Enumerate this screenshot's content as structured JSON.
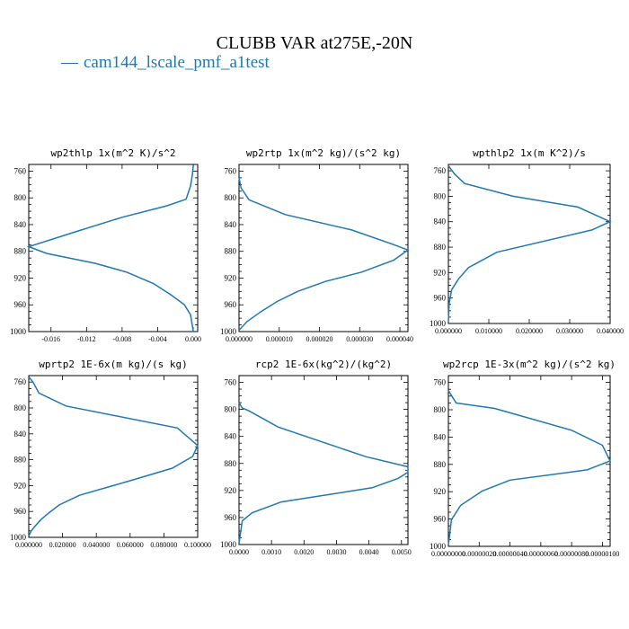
{
  "title": "CLUBB VAR at275E,-20N",
  "legend": {
    "dash": "—",
    "label": "cam144_lscale_pmf_a1test",
    "color": "#1f77b4"
  },
  "chart_data": [
    {
      "type": "line",
      "title": "wp2thlp  1x(m^2 K)/s^2",
      "xlim": [
        -0.0185,
        0.0005
      ],
      "ylim": [
        1000,
        750
      ],
      "yticks": [
        760,
        800,
        840,
        880,
        920,
        960,
        1000
      ],
      "xticks": [
        -0.016,
        -0.012,
        -0.008,
        -0.004,
        0.0
      ],
      "xticklabels": [
        "-0.016",
        "-0.012",
        "-0.008",
        "-0.004",
        "0.000"
      ],
      "series": [
        {
          "x": [
            0.0,
            -0.0001,
            -0.0003,
            -0.0008,
            -0.003,
            -0.008,
            -0.0133,
            -0.0185,
            -0.0165,
            -0.011,
            -0.0075,
            -0.0045,
            -0.0025,
            -0.001,
            -0.0003,
            0.0
          ],
          "y": [
            752,
            765,
            782,
            802,
            812,
            829,
            851,
            873,
            883,
            898,
            911,
            928,
            945,
            960,
            975,
            1000
          ]
        }
      ]
    },
    {
      "type": "line",
      "title": "wp2rtp  1x(m^2 kg)/(s^2 kg)",
      "xlim": [
        0.0,
        4.2e-05
      ],
      "ylim": [
        1000,
        750
      ],
      "yticks": [
        760,
        800,
        840,
        880,
        920,
        960,
        1000
      ],
      "xticks": [
        0.0,
        1e-05,
        2e-05,
        3e-05,
        4e-05
      ],
      "xticklabels": [
        "0.000000",
        "0.000010",
        "0.000020",
        "0.000030",
        "0.000040"
      ],
      "series": [
        {
          "x": [
            0.0,
            5e-07,
            2.5e-06,
            1.15e-05,
            2.8e-05,
            3.85e-05,
            4.2e-05,
            3.85e-05,
            3.05e-05,
            2.15e-05,
            1.45e-05,
            9.5e-06,
            5.5e-06,
            2e-06,
            0.0
          ],
          "y": [
            770,
            785,
            803,
            825,
            848,
            870,
            878,
            893,
            911,
            925,
            940,
            955,
            970,
            985,
            998
          ]
        }
      ]
    },
    {
      "type": "line",
      "title": "wpthlp2  1x(m K^2)/s",
      "xlim": [
        0.0,
        0.04
      ],
      "ylim": [
        1000,
        750
      ],
      "yticks": [
        760,
        800,
        840,
        880,
        920,
        960,
        1000
      ],
      "xticks": [
        0.0,
        0.01,
        0.02,
        0.03,
        0.04
      ],
      "xticklabels": [
        "0.000000",
        "0.010000",
        "0.020000",
        "0.030000",
        "0.040000"
      ],
      "series": [
        {
          "x": [
            0.0,
            0.0015,
            0.004,
            0.016,
            0.032,
            0.04,
            0.0355,
            0.012,
            0.005,
            0.0025,
            0.0008,
            0.0002,
            0.0
          ],
          "y": [
            752,
            765,
            780,
            800,
            817,
            840,
            853,
            888,
            912,
            930,
            947,
            968,
            998
          ]
        }
      ]
    },
    {
      "type": "line",
      "title": "wprtp2  1E-6x(m kg)/(s kg)",
      "xlim": [
        0.0,
        0.1
      ],
      "ylim": [
        1000,
        750
      ],
      "yticks": [
        760,
        800,
        840,
        880,
        920,
        960,
        1000
      ],
      "xticks": [
        0.0,
        0.02,
        0.04,
        0.06,
        0.08,
        0.1
      ],
      "xticklabels": [
        "0.000000",
        "0.020000",
        "0.040000",
        "0.060000",
        "0.080000",
        "0.100000"
      ],
      "series": [
        {
          "x": [
            0.0,
            0.0025,
            0.006,
            0.022,
            0.088,
            0.1,
            0.097,
            0.085,
            0.062,
            0.03,
            0.018,
            0.012,
            0.007,
            0.004,
            0.0015,
            0.0
          ],
          "y": [
            752,
            760,
            777,
            797,
            831,
            858,
            875,
            893,
            911,
            935,
            950,
            962,
            973,
            982,
            990,
            998
          ]
        }
      ]
    },
    {
      "type": "line",
      "title": "rcp2  1E-6x(kg^2)/(kg^2)",
      "xlim": [
        0.0,
        0.0052
      ],
      "ylim": [
        1000,
        750
      ],
      "yticks": [
        760,
        800,
        840,
        880,
        920,
        960,
        1000
      ],
      "xticks": [
        0.0,
        0.001,
        0.002,
        0.003,
        0.004,
        0.005
      ],
      "xticklabels": [
        "0.0000",
        "0.0010",
        "0.0020",
        "0.0030",
        "0.0040",
        "0.0050"
      ],
      "series": [
        {
          "x": [
            0.0,
            0.0001,
            0.0003,
            0.0012,
            0.0039,
            0.0052,
            0.0052,
            0.0049,
            0.0041,
            0.0013,
            0.0004,
            0.0001,
            0.0
          ],
          "y": [
            790,
            798,
            802,
            826,
            870,
            885,
            893,
            902,
            916,
            937,
            953,
            965,
            998
          ]
        }
      ]
    },
    {
      "type": "line",
      "title": "wp2rcp  1E-3x(m^2 kg)/(s^2 kg)",
      "xlim": [
        0.0,
        1.05e-06
      ],
      "ylim": [
        1000,
        750
      ],
      "yticks": [
        760,
        800,
        840,
        880,
        920,
        960,
        1000
      ],
      "xticks": [
        0.0,
        2e-07,
        4e-07,
        6e-07,
        8e-07,
        1e-06
      ],
      "xticklabels": [
        "0.00000000",
        "0.00000020",
        "0.00000040",
        "0.00000060",
        "0.00000080",
        "0.00000100"
      ],
      "series": [
        {
          "x": [
            0.0,
            5e-08,
            3e-07,
            8e-07,
            1e-06,
            1.05e-06,
            9e-07,
            4e-07,
            2.2e-07,
            8e-08,
            2e-08,
            0.0
          ],
          "y": [
            772,
            790,
            798,
            830,
            852,
            875,
            888,
            903,
            919,
            940,
            961,
            998
          ]
        }
      ]
    }
  ]
}
